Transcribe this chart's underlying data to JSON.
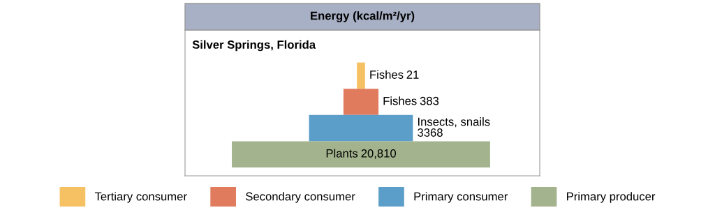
{
  "chart_data": {
    "type": "other",
    "title": "Energy (kcal/m²/yr)",
    "subtitle": "Silver Springs, Florida",
    "categories": [
      "Fishes",
      "Fishes",
      "Insects, snails",
      "Plants"
    ],
    "series": [
      {
        "name": "Tertiary consumer",
        "color": "#f5c162",
        "values": [
          21,
          null,
          null,
          null
        ],
        "value_labels": [
          "21",
          null,
          null,
          null
        ]
      },
      {
        "name": "Secondary consumer",
        "color": "#e07b5e",
        "values": [
          null,
          383,
          null,
          null
        ],
        "value_labels": [
          null,
          "383",
          null,
          null
        ]
      },
      {
        "name": "Primary consumer",
        "color": "#5b9ec9",
        "values": [
          null,
          null,
          3368,
          null
        ],
        "value_labels": [
          null,
          null,
          "3368",
          null
        ]
      },
      {
        "name": "Primary producer",
        "color": "#a3b38d",
        "values": [
          null,
          null,
          null,
          20810
        ],
        "value_labels": [
          null,
          null,
          null,
          "20,810"
        ]
      }
    ],
    "legend": "bottom"
  }
}
